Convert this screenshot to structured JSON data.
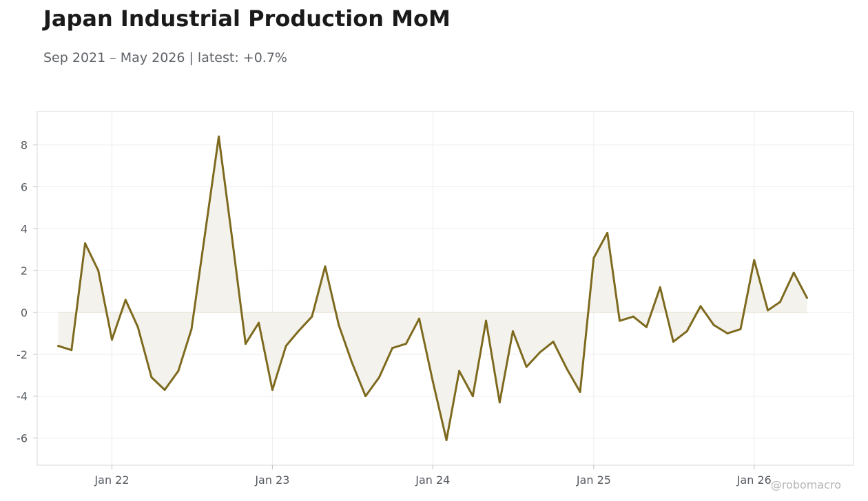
{
  "header": {
    "title": "Japan Industrial Production MoM",
    "subtitle": "Sep 2021 – May 2026 | latest: +0.7%"
  },
  "watermark": "@robomacro",
  "colors": {
    "line": "#7d6a1f",
    "fill": "#f4f2ec",
    "grid": "#ececec",
    "frame": "#d9d9d9"
  },
  "chart_data": {
    "type": "area",
    "title": "Japan Industrial Production MoM",
    "subtitle": "Sep 2021 – May 2026 | latest: +0.7%",
    "xlabel": "",
    "ylabel": "",
    "ylim": [
      -7.3,
      9.6
    ],
    "xlim": [
      "2021-07-15",
      "2026-08-15"
    ],
    "yticks": [
      8,
      6,
      4,
      2,
      0,
      -2,
      -4,
      -6
    ],
    "ytick_labels": [
      "8",
      "6",
      "4",
      "2",
      "0",
      "-2",
      "-4",
      "-6"
    ],
    "xticks": [
      "2022-01-01",
      "2023-01-01",
      "2024-01-01",
      "2025-01-01",
      "2026-01-01"
    ],
    "xtick_labels": [
      "Jan 22",
      "Jan 23",
      "Jan 24",
      "Jan 25",
      "Jan 26"
    ],
    "grid": true,
    "legend": "none",
    "x": [
      "2021-09-01",
      "2021-10-01",
      "2021-11-01",
      "2021-12-01",
      "2022-01-01",
      "2022-02-01",
      "2022-03-01",
      "2022-04-01",
      "2022-05-01",
      "2022-06-01",
      "2022-07-01",
      "2022-08-01",
      "2022-09-01",
      "2022-10-01",
      "2022-11-01",
      "2022-12-01",
      "2023-01-01",
      "2023-02-01",
      "2023-03-01",
      "2023-04-01",
      "2023-05-01",
      "2023-06-01",
      "2023-07-01",
      "2023-08-01",
      "2023-09-01",
      "2023-10-01",
      "2023-11-01",
      "2023-12-01",
      "2024-01-01",
      "2024-02-01",
      "2024-03-01",
      "2024-04-01",
      "2024-05-01",
      "2024-06-01",
      "2024-07-01",
      "2024-08-01",
      "2024-09-01",
      "2024-10-01",
      "2024-11-01",
      "2024-12-01",
      "2025-01-01",
      "2025-02-01",
      "2025-03-01",
      "2025-04-01",
      "2025-05-01",
      "2025-06-01",
      "2025-07-01",
      "2025-08-01",
      "2025-09-01",
      "2025-10-01",
      "2025-11-01",
      "2025-12-01",
      "2026-01-01",
      "2026-02-01",
      "2026-03-01",
      "2026-04-01",
      "2026-05-01"
    ],
    "series": [
      {
        "values": [
          -1.6,
          -1.8,
          3.3,
          2.0,
          -1.3,
          0.6,
          -0.7,
          -3.1,
          -3.7,
          -2.8,
          -0.8,
          3.8,
          8.4,
          3.6,
          -1.5,
          -0.5,
          -3.7,
          -1.6,
          -0.9,
          -0.2,
          2.2,
          -0.6,
          -2.4,
          -4.0,
          -3.1,
          -1.7,
          -1.5,
          -0.3,
          -3.3,
          -6.1,
          -2.8,
          -4.0,
          -0.4,
          -4.3,
          -0.9,
          -2.6,
          -1.9,
          -1.4,
          -2.7,
          -3.8,
          2.6,
          3.8,
          -0.4,
          -0.2,
          -0.7,
          1.2,
          -1.4,
          -0.9,
          0.3,
          -0.6,
          -1.0,
          -0.8,
          2.5,
          0.1,
          0.5,
          1.9,
          0.7
        ]
      }
    ]
  }
}
